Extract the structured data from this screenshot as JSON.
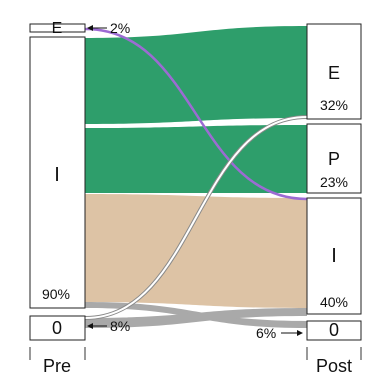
{
  "chart_data": {
    "type": "sankey",
    "title": "",
    "axes": {
      "left": "Pre",
      "right": "Post"
    },
    "colors": {
      "green": "#2e9e6b",
      "tan": "#ddc3a5",
      "gray": "#a9a9a9",
      "purple": "#9c6bd3",
      "white_line": "#ffffff",
      "outline": "#8a8a8a"
    },
    "left_nodes": [
      {
        "id": "E",
        "label": "E",
        "share_label": "2%"
      },
      {
        "id": "I",
        "label": "I",
        "share_label": "90%"
      },
      {
        "id": "0",
        "label": "0",
        "share_label": "8%"
      }
    ],
    "right_nodes": [
      {
        "id": "E",
        "label": "E",
        "share_label": "32%"
      },
      {
        "id": "P",
        "label": "P",
        "share_label": "23%"
      },
      {
        "id": "I",
        "label": "I",
        "share_label": "40%"
      },
      {
        "id": "0",
        "label": "0",
        "share_label": "6%"
      }
    ],
    "flows": [
      {
        "from": "E",
        "to": "I",
        "color": "purple"
      },
      {
        "from": "I",
        "to": "E",
        "color": "green"
      },
      {
        "from": "I",
        "to": "P",
        "color": "green"
      },
      {
        "from": "I",
        "to": "I",
        "color": "tan"
      },
      {
        "from": "I",
        "to": "0",
        "color": "gray"
      },
      {
        "from": "0",
        "to": "E",
        "color": "white_line"
      },
      {
        "from": "0",
        "to": "I",
        "color": "gray"
      }
    ]
  }
}
